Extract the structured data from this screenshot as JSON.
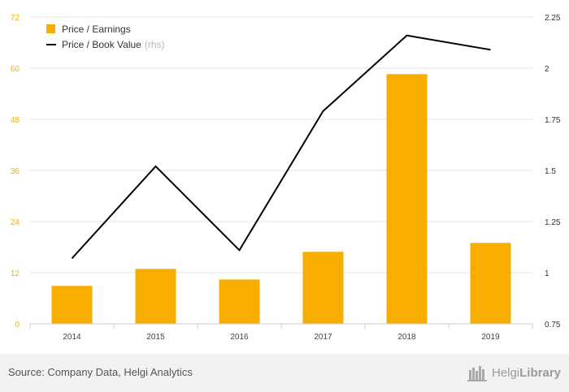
{
  "chart_data": {
    "type": "bar",
    "categories": [
      "2014",
      "2015",
      "2016",
      "2017",
      "2018",
      "2019"
    ],
    "series": [
      {
        "name": "Price / Earnings",
        "type": "bar",
        "axis": "left",
        "color": "#f7ae00",
        "values": [
          8.9,
          12.9,
          10.4,
          16.9,
          58.6,
          19.0
        ]
      },
      {
        "name": "Price / Book Value",
        "name_suffix": "(rhs)",
        "type": "line",
        "axis": "right",
        "color": "#000000",
        "values": [
          1.07,
          1.52,
          1.11,
          1.79,
          2.16,
          2.09
        ]
      }
    ],
    "y_left": {
      "ticks": [
        "0",
        "12",
        "24",
        "36",
        "48",
        "60",
        "72"
      ],
      "range": [
        0,
        72
      ]
    },
    "y_right": {
      "ticks": [
        "0.75",
        "1",
        "1.25",
        "1.5",
        "1.75",
        "2",
        "2.25"
      ],
      "range": [
        0.75,
        2.25
      ]
    },
    "grid": true,
    "legend_position": "top-left"
  },
  "footer": {
    "source": "Source: Company Data, Helgi Analytics",
    "brand_light": "Helgi",
    "brand_bold": "Library"
  },
  "colors": {
    "bar": "#f7ae00",
    "line": "#000000",
    "left_tick": "#f7ae00",
    "grid": "#e6e6e6"
  }
}
